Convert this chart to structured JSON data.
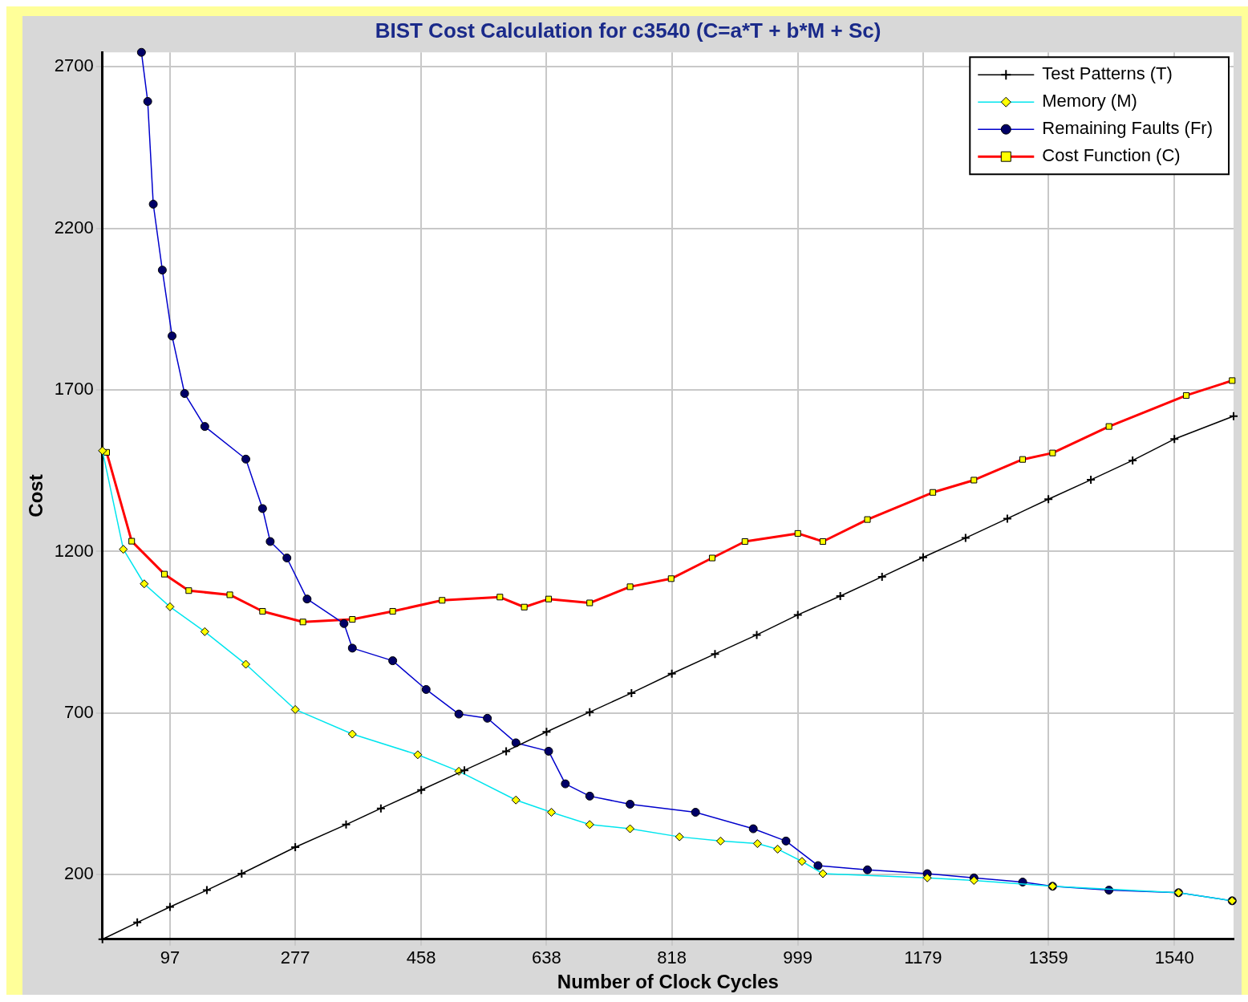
{
  "chart_data": {
    "type": "line",
    "title": "BIST Cost Calculation for c3540 (C=a*T + b*M + Sc)",
    "xlabel": "Number of Clock Cycles",
    "ylabel": "Cost",
    "xlim": [
      0,
      1625
    ],
    "xticks": [
      97,
      277,
      458,
      638,
      818,
      999,
      1179,
      1359,
      1540
    ],
    "ylim": [
      0,
      2745
    ],
    "yticks": [
      200,
      700,
      1200,
      1700,
      2200,
      2700
    ],
    "grid": true,
    "legend": "top right",
    "series": [
      {
        "name": "Test Patterns (T)",
        "color": "#000000",
        "marker": "cross",
        "x": [
          0,
          50,
          97,
          150,
          200,
          277,
          350,
          400,
          458,
          520,
          580,
          638,
          700,
          760,
          818,
          880,
          940,
          999,
          1060,
          1120,
          1179,
          1240,
          1300,
          1359,
          1420,
          1480,
          1540,
          1625
        ],
        "values": [
          0,
          52,
          100,
          152,
          203,
          285,
          355,
          405,
          462,
          523,
          582,
          642,
          703,
          762,
          822,
          883,
          942,
          1004,
          1062,
          1122,
          1182,
          1242,
          1302,
          1362,
          1422,
          1482,
          1548,
          1619
        ]
      },
      {
        "name": "Memory (M)",
        "color": "#00e5ee",
        "marker": "diamond",
        "x": [
          0,
          30,
          60,
          97,
          147,
          206,
          277,
          359,
          453,
          512,
          594,
          645,
          700,
          758,
          829,
          888,
          941,
          970,
          1005,
          1035,
          1185,
          1252,
          1365,
          1546,
          1623
        ],
        "values": [
          1512,
          1207,
          1100,
          1029,
          952,
          851,
          711,
          635,
          571,
          520,
          431,
          393,
          355,
          342,
          317,
          304,
          296,
          279,
          241,
          203,
          190,
          182,
          164,
          144,
          119
        ]
      },
      {
        "name": "Remaining Faults (Fr)",
        "color": "#0000cc",
        "marker": "circle",
        "x": [
          56,
          65,
          73,
          86,
          100,
          118,
          147,
          206,
          230,
          241,
          265,
          294,
          347,
          359,
          417,
          465,
          512,
          553,
          594,
          641,
          665,
          700,
          758,
          852,
          935,
          982,
          1028,
          1099,
          1185,
          1252,
          1322,
          1365,
          1446,
          1546,
          1623
        ],
        "values": [
          2745,
          2593,
          2275,
          2071,
          1867,
          1689,
          1587,
          1486,
          1333,
          1231,
          1180,
          1053,
          977,
          901,
          862,
          773,
          697,
          684,
          608,
          582,
          481,
          443,
          418,
          393,
          342,
          304,
          228,
          215,
          203,
          190,
          177,
          164,
          152,
          144,
          119
        ]
      },
      {
        "name": "Cost Function (C)",
        "color": "#ff0000",
        "marker": "square",
        "x": [
          6,
          42,
          89,
          124,
          183,
          230,
          288,
          359,
          417,
          488,
          571,
          606,
          641,
          700,
          758,
          817,
          876,
          923,
          999,
          1035,
          1099,
          1193,
          1252,
          1322,
          1365,
          1446,
          1557,
          1623
        ],
        "values": [
          1507,
          1232,
          1130,
          1079,
          1066,
          1015,
          982,
          990,
          1015,
          1049,
          1059,
          1028,
          1053,
          1041,
          1091,
          1116,
          1180,
          1231,
          1256,
          1231,
          1299,
          1383,
          1421,
          1485,
          1505,
          1587,
          1683,
          1729
        ]
      }
    ]
  }
}
